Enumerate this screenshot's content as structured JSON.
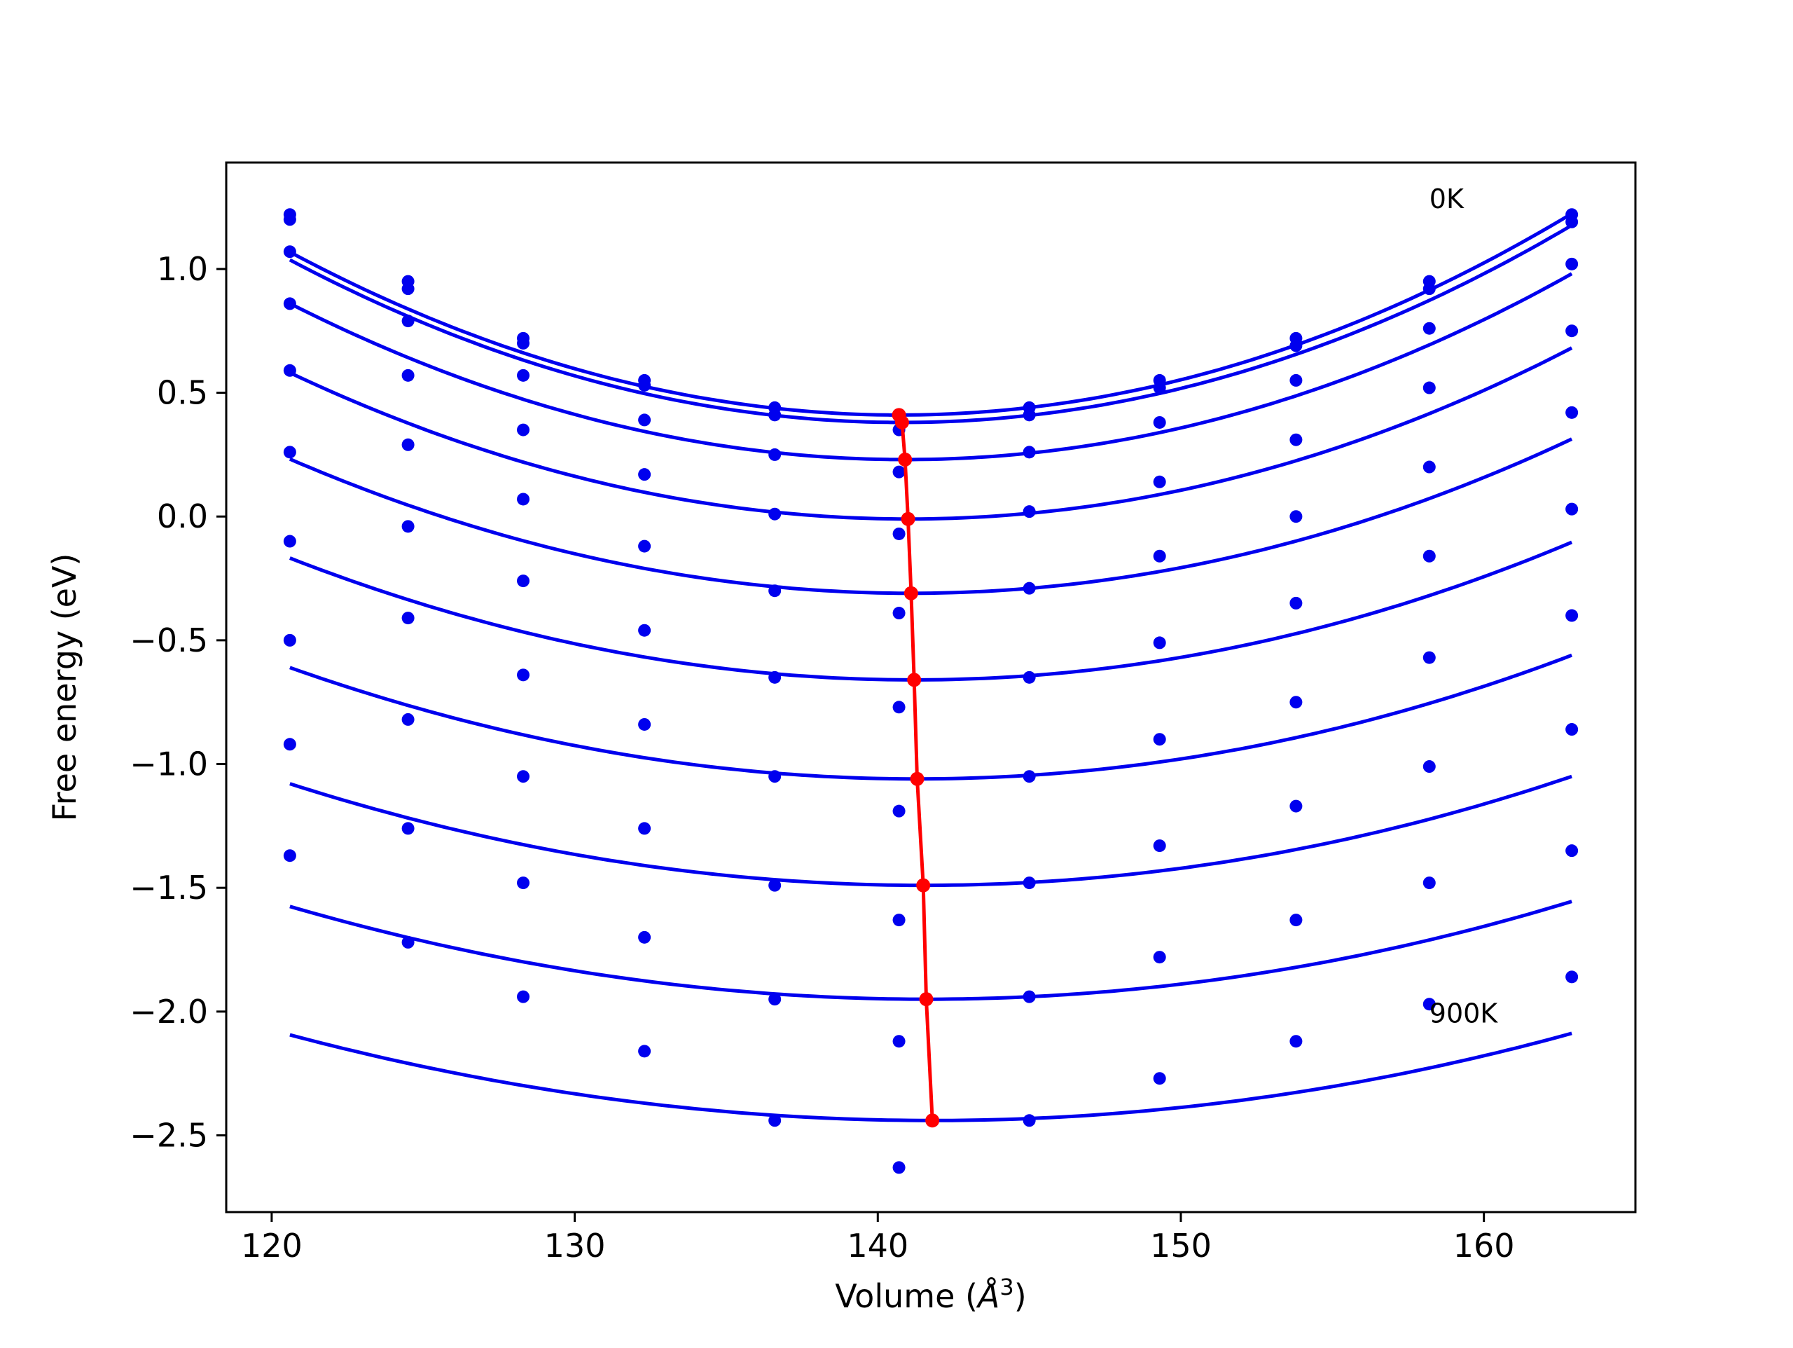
{
  "chart_data": {
    "type": "scatter",
    "title": "",
    "xlabel": "Volume (",
    "xlabel_symbol": "Å",
    "xlabel_exp": "3",
    "xlabel_close": ")",
    "ylabel": "Free energy (eV)",
    "xlim": [
      118.5,
      165
    ],
    "ylim": [
      -2.81,
      1.43
    ],
    "xticks": [
      120,
      130,
      140,
      150,
      160
    ],
    "xtick_labels": [
      "120",
      "130",
      "140",
      "150",
      "160"
    ],
    "yticks": [
      1.0,
      0.5,
      0.0,
      -0.5,
      -1.0,
      -1.5,
      -2.0,
      -2.5
    ],
    "ytick_labels": [
      "1.0",
      "0.5",
      "0.0",
      "−0.5",
      "−1.0",
      "−1.5",
      "−2.0",
      "−2.5"
    ],
    "grid": false,
    "annotations": [
      {
        "text": "0K",
        "x": 158.2,
        "y": 1.28
      },
      {
        "text": "900K",
        "x": 158.2,
        "y": -2.01
      }
    ],
    "volumes": [
      120.6,
      124.5,
      128.3,
      132.3,
      136.6,
      140.7,
      145.0,
      149.3,
      153.8,
      158.2,
      162.9
    ],
    "series": [
      {
        "energies": [
          1.22,
          0.95,
          0.72,
          0.55,
          0.44,
          0.41,
          0.44,
          0.55,
          0.72,
          0.95,
          1.22
        ],
        "fit": {
          "v0": 140.7,
          "e0": 0.41,
          "a": 0.00164,
          "b": 5e-07
        }
      },
      {
        "energies": [
          1.2,
          0.92,
          0.7,
          0.53,
          0.41,
          0.35,
          0.41,
          0.52,
          0.69,
          0.92,
          1.19
        ],
        "fit": {
          "v0": 140.8,
          "e0": 0.38,
          "a": 0.00162,
          "b": 5e-07
        }
      },
      {
        "energies": [
          1.07,
          0.79,
          0.57,
          0.39,
          0.25,
          0.18,
          0.26,
          0.38,
          0.55,
          0.76,
          1.02
        ],
        "fit": {
          "v0": 140.9,
          "e0": 0.23,
          "a": 0.00154,
          "b": 5e-07
        }
      },
      {
        "energies": [
          0.86,
          0.57,
          0.35,
          0.17,
          0.01,
          -0.07,
          0.02,
          0.14,
          0.31,
          0.52,
          0.75
        ],
        "fit": {
          "v0": 141.0,
          "e0": -0.01,
          "a": 0.00143,
          "b": 5e-07
        }
      },
      {
        "energies": [
          0.59,
          0.29,
          0.07,
          -0.12,
          -0.3,
          -0.39,
          -0.29,
          -0.16,
          0.0,
          0.2,
          0.42
        ],
        "fit": {
          "v0": 141.1,
          "e0": -0.31,
          "a": 0.0013,
          "b": 5e-07
        }
      },
      {
        "energies": [
          0.26,
          -0.04,
          -0.26,
          -0.46,
          -0.65,
          -0.77,
          -0.65,
          -0.51,
          -0.35,
          -0.16,
          0.03
        ],
        "fit": {
          "v0": 141.2,
          "e0": -0.66,
          "a": 0.00117,
          "b": 5e-07
        }
      },
      {
        "energies": [
          -0.1,
          -0.41,
          -0.64,
          -0.84,
          -1.05,
          -1.19,
          -1.05,
          -0.9,
          -0.75,
          -0.57,
          -0.4
        ],
        "fit": {
          "v0": 141.3,
          "e0": -1.06,
          "a": 0.00106,
          "b": 5e-07
        }
      },
      {
        "energies": [
          -0.5,
          -0.82,
          -1.05,
          -1.26,
          -1.49,
          -1.63,
          -1.48,
          -1.33,
          -1.17,
          -1.01,
          -0.86
        ],
        "fit": {
          "v0": 141.5,
          "e0": -1.49,
          "a": 0.00095,
          "b": 5e-07
        }
      },
      {
        "energies": [
          -0.92,
          -1.26,
          -1.48,
          -1.7,
          -1.95,
          -2.12,
          -1.94,
          -1.78,
          -1.63,
          -1.48,
          -1.35
        ],
        "fit": {
          "v0": 141.6,
          "e0": -1.95,
          "a": 0.00086,
          "b": 5e-07
        }
      },
      {
        "energies": [
          -1.37,
          -1.72,
          -1.94,
          -2.16,
          -2.44,
          -2.63,
          -2.44,
          -2.27,
          -2.12,
          -1.97,
          -1.86
        ],
        "fit": {
          "v0": 141.8,
          "e0": -2.44,
          "a": 0.00078,
          "b": 5e-07
        }
      }
    ],
    "minimum_line": {
      "color": "#ff0000",
      "x": [
        140.7,
        140.8,
        140.9,
        141.0,
        141.1,
        141.2,
        141.3,
        141.5,
        141.6,
        141.8
      ],
      "y": [
        0.41,
        0.38,
        0.23,
        -0.01,
        -0.31,
        -0.66,
        -1.06,
        -1.49,
        -1.95,
        -2.44
      ]
    },
    "colors": {
      "points": "#0000ee",
      "fit": "#0000ee",
      "minimum": "#ff0000",
      "axes": "#000000"
    }
  }
}
